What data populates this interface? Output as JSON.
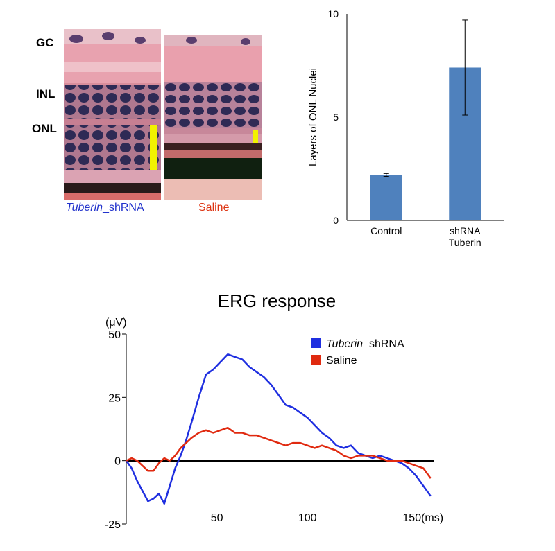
{
  "histology": {
    "layer_labels": [
      "GC",
      "INL",
      "ONL"
    ],
    "panels": [
      {
        "caption_italic": "Tuberin",
        "caption_rest": "_shRNA",
        "caption_color": "#2233cc"
      },
      {
        "caption_italic": "",
        "caption_rest": "Saline",
        "caption_color": "#dd3311"
      }
    ],
    "scale_bar_color": "#f2f200"
  },
  "chart_data": [
    {
      "type": "bar",
      "title": "",
      "ylabel": "Layers of ONL Nuclei",
      "xlabel": "",
      "categories": [
        "Control",
        "shRNA Tuberin"
      ],
      "category_lines": [
        [
          "Control"
        ],
        [
          "shRNA",
          "Tuberin"
        ]
      ],
      "values": [
        2.2,
        7.4
      ],
      "error": [
        0.07,
        2.3
      ],
      "ylim": [
        0,
        10
      ],
      "yticks": [
        0,
        5,
        10
      ],
      "bar_color": "#4f81bd",
      "grid": false,
      "legend": "none"
    },
    {
      "type": "line",
      "title": "ERG response",
      "ylabel": "(μV)",
      "xlabel": "",
      "xtick_labels": [
        "50",
        "100",
        "150(ms)"
      ],
      "xticks": [
        50,
        100,
        150
      ],
      "yticks": [
        -25,
        0,
        25,
        50
      ],
      "xlim": [
        0,
        170
      ],
      "ylim": [
        -25,
        50
      ],
      "grid": false,
      "legend": "top-right",
      "series": [
        {
          "name": "Tuberin_shRNA",
          "name_italic": "Tuberin",
          "name_rest": "_shRNA",
          "color": "#1f2fe0",
          "x": [
            0,
            3,
            6,
            9,
            12,
            15,
            18,
            21,
            24,
            27,
            30,
            33,
            36,
            40,
            44,
            48,
            52,
            56,
            60,
            64,
            68,
            72,
            76,
            80,
            84,
            88,
            92,
            96,
            100,
            104,
            108,
            112,
            116,
            120,
            124,
            128,
            132,
            136,
            140,
            144,
            148,
            152,
            156,
            160,
            164,
            168
          ],
          "y": [
            0,
            -3,
            -8,
            -12,
            -16,
            -15,
            -13,
            -17,
            -10,
            -3,
            2,
            8,
            15,
            25,
            34,
            36,
            39,
            42,
            41,
            40,
            37,
            35,
            33,
            30,
            26,
            22,
            21,
            19,
            17,
            14,
            11,
            9,
            6,
            5,
            6,
            3,
            2,
            1,
            2,
            1,
            0,
            -1,
            -3,
            -6,
            -10,
            -14
          ]
        },
        {
          "name": "Saline",
          "name_italic": "",
          "name_rest": "Saline",
          "color": "#e02a10",
          "x": [
            0,
            3,
            6,
            9,
            12,
            15,
            18,
            21,
            24,
            27,
            30,
            33,
            36,
            40,
            44,
            48,
            52,
            56,
            60,
            64,
            68,
            72,
            76,
            80,
            84,
            88,
            92,
            96,
            100,
            104,
            108,
            112,
            116,
            120,
            124,
            128,
            132,
            136,
            140,
            144,
            148,
            152,
            156,
            160,
            164,
            168
          ],
          "y": [
            0,
            1,
            0,
            -2,
            -4,
            -4,
            -1,
            1,
            0,
            2,
            5,
            7,
            9,
            11,
            12,
            11,
            12,
            13,
            11,
            11,
            10,
            10,
            9,
            8,
            7,
            6,
            7,
            7,
            6,
            5,
            6,
            5,
            4,
            2,
            1,
            2,
            2,
            2,
            1,
            0,
            0,
            0,
            -1,
            -2,
            -3,
            -7
          ]
        }
      ]
    }
  ]
}
